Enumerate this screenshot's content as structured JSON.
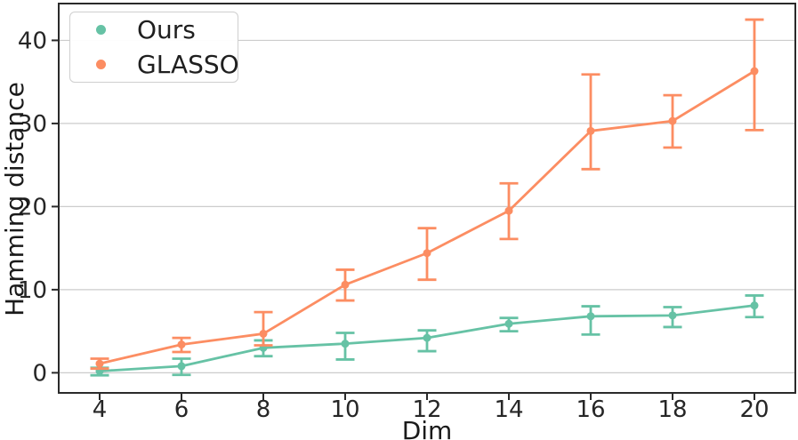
{
  "chart_data": {
    "type": "line",
    "title": "",
    "xlabel": "Dim",
    "ylabel": "Hamming distance",
    "x": [
      4,
      6,
      8,
      10,
      12,
      14,
      16,
      18,
      20
    ],
    "x_ticks": [
      "4",
      "6",
      "8",
      "10",
      "12",
      "14",
      "16",
      "18",
      "20"
    ],
    "y_ticks": [
      "0",
      "10",
      "20",
      "30",
      "40"
    ],
    "y_tick_values": [
      0,
      10,
      20,
      30,
      40
    ],
    "xlim": [
      3,
      21
    ],
    "ylim": [
      -2.42,
      44.43
    ],
    "grid": "horizontal-only",
    "legend_position": "upper-left",
    "series": [
      {
        "name": "Ours",
        "color": "#66C2A5",
        "values": [
          0.2,
          0.8,
          3.0,
          3.5,
          4.2,
          5.9,
          6.8,
          6.9,
          8.1
        ],
        "err_low": [
          -0.3,
          -0.25,
          2.0,
          1.6,
          2.6,
          5.0,
          4.6,
          5.5,
          6.7
        ],
        "err_high": [
          0.6,
          1.7,
          3.9,
          4.8,
          5.1,
          6.6,
          8.0,
          7.9,
          9.3
        ]
      },
      {
        "name": "GLASSO",
        "color": "#FC8D62",
        "values": [
          1.1,
          3.4,
          4.7,
          10.6,
          14.4,
          19.5,
          29.1,
          30.3,
          36.3
        ],
        "err_low": [
          0.5,
          2.5,
          3.3,
          8.7,
          11.2,
          16.1,
          24.5,
          27.1,
          29.2
        ],
        "err_high": [
          1.7,
          4.2,
          7.3,
          12.4,
          17.4,
          22.8,
          35.9,
          33.4,
          42.5
        ]
      }
    ],
    "colors": {
      "grid": "#cccccc",
      "spine": "#2a2a2a",
      "text": "#262626",
      "background": "#ffffff"
    }
  }
}
